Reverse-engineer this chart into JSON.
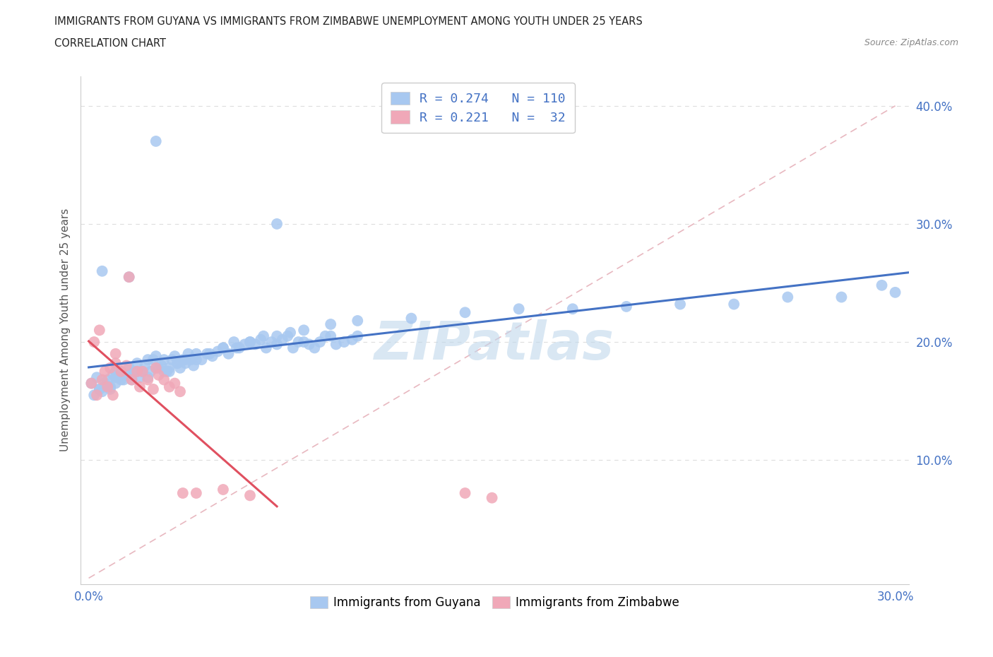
{
  "title_line1": "IMMIGRANTS FROM GUYANA VS IMMIGRANTS FROM ZIMBABWE UNEMPLOYMENT AMONG YOUTH UNDER 25 YEARS",
  "title_line2": "CORRELATION CHART",
  "source_text": "Source: ZipAtlas.com",
  "ylabel": "Unemployment Among Youth under 25 years",
  "xlim": [
    -0.003,
    0.305
  ],
  "ylim": [
    -0.005,
    0.425
  ],
  "xtick_vals": [
    0.0,
    0.05,
    0.1,
    0.15,
    0.2,
    0.25,
    0.3
  ],
  "xticklabels": [
    "0.0%",
    "",
    "",
    "",
    "",
    "",
    "30.0%"
  ],
  "ytick_vals": [
    0.1,
    0.2,
    0.3,
    0.4
  ],
  "yticklabels": [
    "10.0%",
    "20.0%",
    "30.0%",
    "40.0%"
  ],
  "guyana_color": "#a8c8f0",
  "zimbabwe_color": "#f0a8b8",
  "guyana_R": 0.274,
  "guyana_N": 110,
  "zimbabwe_R": 0.221,
  "zimbabwe_N": 32,
  "legend_R_color": "#4472c4",
  "legend_label1": "Immigrants from Guyana",
  "legend_label2": "Immigrants from Zimbabwe",
  "watermark": "ZIPatlas",
  "watermark_color": "#c0d8ec",
  "trend_guyana_color": "#4472c4",
  "trend_zimbabwe_color": "#e05060",
  "diag_color": "#e8b8c0",
  "background_color": "#ffffff",
  "title_color": "#222222",
  "source_color": "#888888",
  "ylabel_color": "#555555",
  "tick_color": "#4472c4",
  "grid_color": "#dddddd",
  "guyana_x": [
    0.001,
    0.002,
    0.003,
    0.004,
    0.005,
    0.006,
    0.007,
    0.008,
    0.009,
    0.01,
    0.01,
    0.011,
    0.012,
    0.013,
    0.014,
    0.015,
    0.016,
    0.017,
    0.018,
    0.019,
    0.02,
    0.021,
    0.022,
    0.023,
    0.024,
    0.025,
    0.026,
    0.027,
    0.028,
    0.029,
    0.03,
    0.031,
    0.032,
    0.033,
    0.034,
    0.035,
    0.036,
    0.037,
    0.038,
    0.039,
    0.04,
    0.042,
    0.044,
    0.046,
    0.048,
    0.05,
    0.052,
    0.054,
    0.056,
    0.058,
    0.06,
    0.062,
    0.064,
    0.066,
    0.068,
    0.07,
    0.072,
    0.074,
    0.076,
    0.078,
    0.08,
    0.082,
    0.084,
    0.086,
    0.088,
    0.09,
    0.092,
    0.095,
    0.098,
    0.1,
    0.004,
    0.006,
    0.008,
    0.01,
    0.012,
    0.015,
    0.018,
    0.02,
    0.022,
    0.025,
    0.028,
    0.03,
    0.033,
    0.036,
    0.04,
    0.045,
    0.05,
    0.055,
    0.06,
    0.065,
    0.07,
    0.075,
    0.08,
    0.09,
    0.1,
    0.12,
    0.14,
    0.16,
    0.18,
    0.2,
    0.22,
    0.24,
    0.26,
    0.28,
    0.3,
    0.295,
    0.005,
    0.015,
    0.025,
    0.07
  ],
  "guyana_y": [
    0.165,
    0.155,
    0.17,
    0.16,
    0.158,
    0.162,
    0.168,
    0.16,
    0.172,
    0.175,
    0.165,
    0.17,
    0.175,
    0.168,
    0.172,
    0.178,
    0.168,
    0.175,
    0.182,
    0.17,
    0.175,
    0.18,
    0.185,
    0.175,
    0.185,
    0.188,
    0.178,
    0.18,
    0.185,
    0.175,
    0.175,
    0.185,
    0.188,
    0.182,
    0.178,
    0.185,
    0.182,
    0.19,
    0.185,
    0.18,
    0.19,
    0.185,
    0.19,
    0.188,
    0.192,
    0.195,
    0.19,
    0.2,
    0.195,
    0.198,
    0.2,
    0.198,
    0.202,
    0.195,
    0.2,
    0.198,
    0.202,
    0.205,
    0.195,
    0.2,
    0.2,
    0.198,
    0.195,
    0.2,
    0.205,
    0.205,
    0.198,
    0.2,
    0.202,
    0.205,
    0.16,
    0.165,
    0.162,
    0.17,
    0.168,
    0.172,
    0.175,
    0.175,
    0.17,
    0.178,
    0.175,
    0.178,
    0.182,
    0.185,
    0.185,
    0.19,
    0.195,
    0.195,
    0.2,
    0.205,
    0.205,
    0.208,
    0.21,
    0.215,
    0.218,
    0.22,
    0.225,
    0.228,
    0.228,
    0.23,
    0.232,
    0.232,
    0.238,
    0.238,
    0.242,
    0.248,
    0.26,
    0.255,
    0.37,
    0.3
  ],
  "zimbabwe_x": [
    0.001,
    0.002,
    0.003,
    0.004,
    0.005,
    0.006,
    0.007,
    0.008,
    0.009,
    0.01,
    0.01,
    0.012,
    0.014,
    0.015,
    0.016,
    0.018,
    0.019,
    0.02,
    0.022,
    0.024,
    0.025,
    0.026,
    0.028,
    0.03,
    0.032,
    0.034,
    0.035,
    0.04,
    0.05,
    0.06,
    0.14,
    0.15
  ],
  "zimbabwe_y": [
    0.165,
    0.2,
    0.155,
    0.21,
    0.168,
    0.175,
    0.162,
    0.178,
    0.155,
    0.19,
    0.182,
    0.175,
    0.18,
    0.255,
    0.168,
    0.175,
    0.162,
    0.175,
    0.168,
    0.16,
    0.178,
    0.172,
    0.168,
    0.162,
    0.165,
    0.158,
    0.072,
    0.072,
    0.075,
    0.07,
    0.072,
    0.068
  ]
}
